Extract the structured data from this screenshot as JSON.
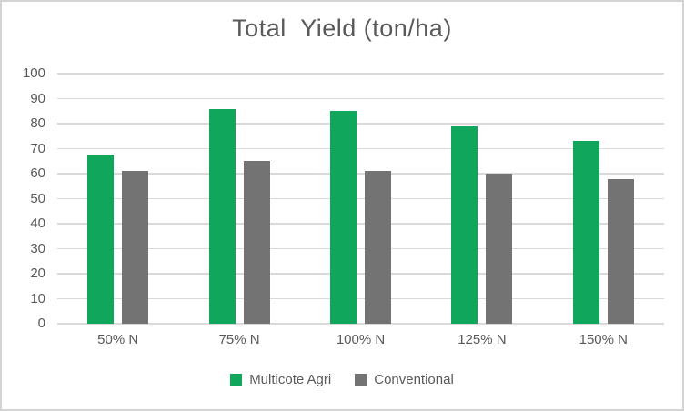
{
  "chart_data": {
    "type": "bar",
    "title": "Total  Yield (ton/ha)",
    "categories": [
      "50% N",
      "75% N",
      "100% N",
      "125% N",
      "150% N"
    ],
    "series": [
      {
        "name": "Multicote Agri",
        "color": "#10A75C",
        "values": [
          67.5,
          86,
          85,
          79,
          73
        ]
      },
      {
        "name": "Conventional",
        "color": "#737373",
        "values": [
          61,
          65,
          61,
          60,
          58
        ]
      }
    ],
    "ylim": [
      0,
      100
    ],
    "yticks": [
      0,
      10,
      20,
      30,
      40,
      50,
      60,
      70,
      80,
      90,
      100
    ],
    "xlabel": "",
    "ylabel": "",
    "grid": true,
    "legend_position": "bottom"
  },
  "colors": {
    "grid": "#D9D9D9",
    "text": "#595959",
    "frame_border": "#D4D4D4",
    "background": "#FFFFFF",
    "series_green": "#10A75C",
    "series_gray": "#737373"
  }
}
